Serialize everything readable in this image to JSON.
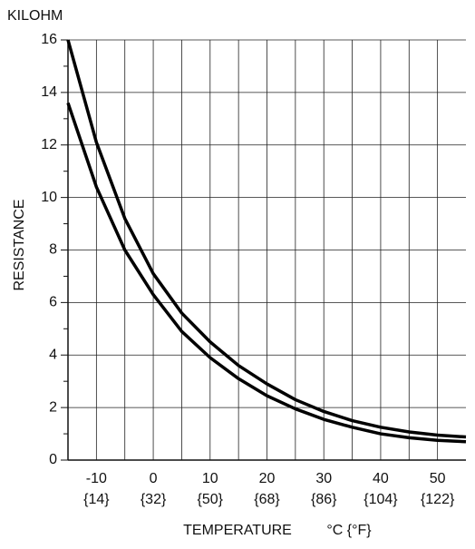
{
  "chart_data": {
    "type": "line",
    "y_unit": "KILOHM",
    "y_label": "RESISTANCE",
    "x_label": "TEMPERATURE",
    "x_unit": "°C {°F}",
    "x": [
      -15,
      -10,
      -5,
      0,
      5,
      10,
      15,
      20,
      25,
      30,
      35,
      40,
      45,
      50,
      55
    ],
    "series": [
      {
        "color": "#000000",
        "values": [
          16,
          12.1,
          9.2,
          7.1,
          5.6,
          4.5,
          3.6,
          2.9,
          2.3,
          1.85,
          1.5,
          1.25,
          1.07,
          0.95,
          0.88
        ]
      },
      {
        "color": "#000000",
        "values": [
          13.6,
          10.4,
          8.0,
          6.3,
          4.9,
          3.9,
          3.1,
          2.45,
          1.95,
          1.55,
          1.25,
          1.0,
          0.85,
          0.75,
          0.7
        ]
      }
    ],
    "xlim": [
      -15,
      55
    ],
    "ylim": [
      0,
      16
    ],
    "xticks": [
      -10,
      0,
      10,
      20,
      30,
      40,
      50
    ],
    "xtick_sublabels": [
      "{14}",
      "{32}",
      "{50}",
      "{68}",
      "{86}",
      "{104}",
      "{122}"
    ],
    "yticks": [
      0,
      2,
      4,
      6,
      8,
      10,
      12,
      14,
      16
    ],
    "grid": true
  }
}
